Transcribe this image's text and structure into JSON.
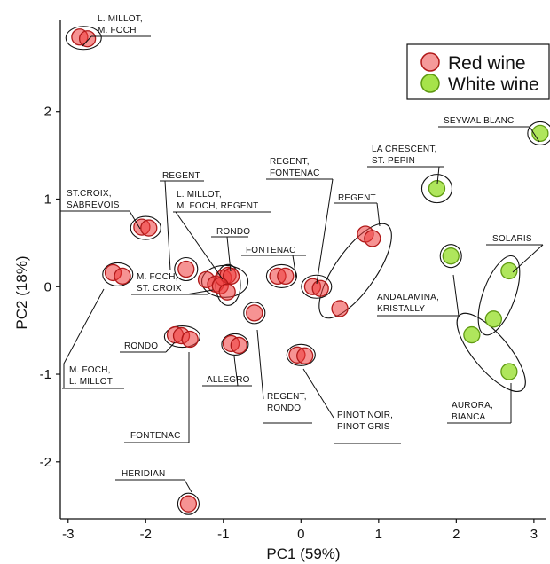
{
  "chart_data": {
    "type": "scatter",
    "xlabel": "PC1 (59%)",
    "ylabel": "PC2 (18%)",
    "xlim": [
      -3.1,
      3.15
    ],
    "ylim": [
      -2.65,
      3.05
    ],
    "xticks": [
      -3,
      -2,
      -1,
      0,
      1,
      2,
      3
    ],
    "yticks": [
      -2,
      -1,
      0,
      1,
      2
    ],
    "grid": false,
    "legend_position": "top-right",
    "colors": {
      "red_fill": "#ee3b3b",
      "red_stroke": "#b01818",
      "white_fill": "#a6e34a",
      "white_stroke": "#5f9a12",
      "ellipse": "#111111"
    },
    "series": [
      {
        "name": "Red wine",
        "color": "#ee3b3b",
        "points": [
          {
            "x": -2.85,
            "y": 2.85
          },
          {
            "x": -2.75,
            "y": 2.83
          },
          {
            "x": -2.05,
            "y": 0.68
          },
          {
            "x": -1.96,
            "y": 0.67
          },
          {
            "x": -2.42,
            "y": 0.16
          },
          {
            "x": -2.3,
            "y": 0.12
          },
          {
            "x": -1.48,
            "y": 0.2
          },
          {
            "x": -1.22,
            "y": 0.08
          },
          {
            "x": -1.1,
            "y": 0.03
          },
          {
            "x": -1.0,
            "y": 0.1
          },
          {
            "x": -0.94,
            "y": 0.13
          },
          {
            "x": -0.9,
            "y": 0.12
          },
          {
            "x": -1.04,
            "y": 0.01
          },
          {
            "x": -0.95,
            "y": -0.06
          },
          {
            "x": -1.62,
            "y": -0.55
          },
          {
            "x": -1.54,
            "y": -0.56
          },
          {
            "x": -1.43,
            "y": -0.6
          },
          {
            "x": -0.9,
            "y": -0.65
          },
          {
            "x": -0.8,
            "y": -0.67
          },
          {
            "x": -0.6,
            "y": -0.3
          },
          {
            "x": -0.3,
            "y": 0.12
          },
          {
            "x": -0.2,
            "y": 0.12
          },
          {
            "x": 0.15,
            "y": 0.0
          },
          {
            "x": 0.25,
            "y": -0.02
          },
          {
            "x": -0.05,
            "y": -0.78
          },
          {
            "x": 0.05,
            "y": -0.79
          },
          {
            "x": 0.83,
            "y": 0.6
          },
          {
            "x": 0.92,
            "y": 0.55
          },
          {
            "x": 0.5,
            "y": -0.25
          },
          {
            "x": -1.45,
            "y": -2.48
          }
        ]
      },
      {
        "name": "White wine",
        "color": "#a6e34a",
        "points": [
          {
            "x": 1.75,
            "y": 1.12
          },
          {
            "x": 1.93,
            "y": 0.35
          },
          {
            "x": 2.48,
            "y": -0.37
          },
          {
            "x": 2.2,
            "y": -0.55
          },
          {
            "x": 2.68,
            "y": 0.18
          },
          {
            "x": 2.68,
            "y": -0.97
          },
          {
            "x": 3.08,
            "y": 1.75
          }
        ]
      }
    ],
    "annotations": [
      {
        "lines": [
          "L. MILLOT,",
          "M. FOCH"
        ]
      },
      {
        "lines": [
          "ST.CROIX,",
          "SABREVOIS"
        ]
      },
      {
        "lines": [
          "REGENT"
        ]
      },
      {
        "lines": [
          "L. MILLOT,",
          "M. FOCH, REGENT"
        ]
      },
      {
        "lines": [
          "RONDO"
        ]
      },
      {
        "lines": [
          "FONTENAC"
        ]
      },
      {
        "lines": [
          "REGENT,",
          "FONTENAC"
        ]
      },
      {
        "lines": [
          "REGENT"
        ]
      },
      {
        "lines": [
          "LA CRESCENT,",
          "ST. PEPIN"
        ]
      },
      {
        "lines": [
          "SEYWAL BLANC"
        ]
      },
      {
        "lines": [
          "SOLARIS"
        ]
      },
      {
        "lines": [
          "M. FOCH,",
          "ST. CROIX"
        ]
      },
      {
        "lines": [
          "ANDALAMINA,",
          "KRISTALLY"
        ]
      },
      {
        "lines": [
          "RONDO"
        ]
      },
      {
        "lines": [
          "ALLEGRO"
        ]
      },
      {
        "lines": [
          "REGENT,",
          "RONDO"
        ]
      },
      {
        "lines": [
          "PINOT NOIR,",
          "PINOT GRIS"
        ]
      },
      {
        "lines": [
          "M. FOCH,",
          "L. MILLOT"
        ]
      },
      {
        "lines": [
          "FONTENAC"
        ]
      },
      {
        "lines": [
          "AURORA,",
          "BIANCA"
        ]
      },
      {
        "lines": [
          "HERIDIAN"
        ]
      }
    ]
  }
}
